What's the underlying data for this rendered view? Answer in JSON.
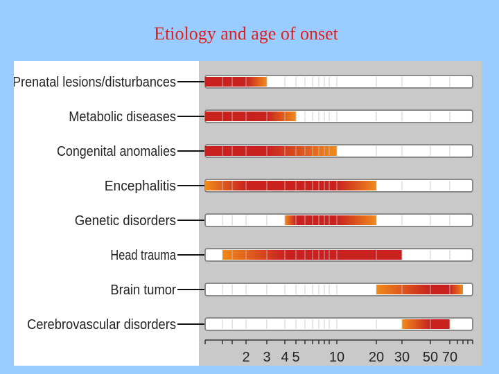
{
  "slide": {
    "title": "Etiology and age of onset"
  },
  "chart_data": {
    "type": "range-bar",
    "x_ticks": [
      "2",
      "3",
      "4",
      "5",
      "10",
      "20",
      "30",
      "50",
      "70"
    ],
    "scale": "log",
    "categories": [
      "Prenatal lesions/disturbances",
      "Metabolic diseases",
      "Congenital anomalies",
      "Encephalitis",
      "Genetic disorders",
      "Head trauma",
      "Brain tumor",
      "Cerebrovascular disorders"
    ],
    "ranges": [
      {
        "label": "Prenatal lesions/disturbances",
        "start": 0,
        "peak_end": 2,
        "end": 3
      },
      {
        "label": "Metabolic diseases",
        "start": 0,
        "peak_end": 3,
        "end": 5
      },
      {
        "label": "Congenital anomalies",
        "start": 0,
        "peak_end": 3,
        "end": 10
      },
      {
        "label": "Encephalitis",
        "start": 0,
        "peak_start": 2,
        "peak_end": 10,
        "end": 20
      },
      {
        "label": "Genetic disorders",
        "start": 4,
        "peak_start": 5,
        "peak_end": 10,
        "end": 20
      },
      {
        "label": "Head trauma",
        "start": 1,
        "peak_start": 4,
        "peak_end": 30,
        "end": 30
      },
      {
        "label": "Brain tumor",
        "start": 20,
        "peak_start": 50,
        "peak_end": 70,
        "end": 80
      },
      {
        "label": "Cerebrovascular disorders",
        "start": 30,
        "peak_start": 50,
        "peak_end": 70,
        "end": 70
      }
    ],
    "colors": {
      "peak": "#c8211e",
      "mid": "#e0461e",
      "tail": "#f08a1c",
      "track": "#ffffff",
      "track_border": "#8a8a8a",
      "leader": "#111111"
    }
  }
}
